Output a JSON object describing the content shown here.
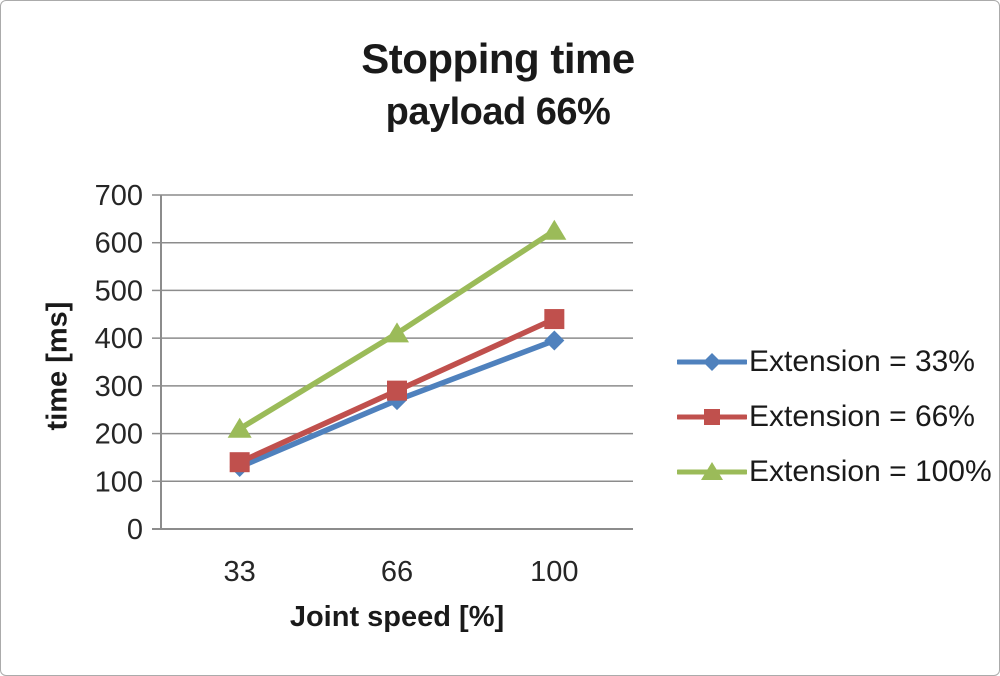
{
  "chart_data": {
    "type": "line",
    "title": "Stopping time",
    "subtitle": "payload 66%",
    "xlabel": "Joint speed [%]",
    "ylabel": "time [ms]",
    "categories": [
      "33",
      "66",
      "100"
    ],
    "series": [
      {
        "name": "Extension = 33%",
        "color": "#4F81BD",
        "marker": "diamond",
        "values": [
          130,
          270,
          395
        ]
      },
      {
        "name": "Extension = 66%",
        "color": "#C0504D",
        "marker": "square",
        "values": [
          140,
          290,
          440
        ]
      },
      {
        "name": "Extension = 100%",
        "color": "#9BBB59",
        "marker": "triangle",
        "values": [
          210,
          410,
          625
        ]
      }
    ],
    "ylim": [
      0,
      700
    ],
    "ytick_step": 100,
    "yticks": [
      0,
      100,
      200,
      300,
      400,
      500,
      600,
      700
    ],
    "grid": true,
    "legend_position": "right",
    "gridline_color": "#8c8c8c",
    "axis_color": "#8c8c8c",
    "text_color": "#1a1a1a",
    "background_color": "#ffffff"
  }
}
